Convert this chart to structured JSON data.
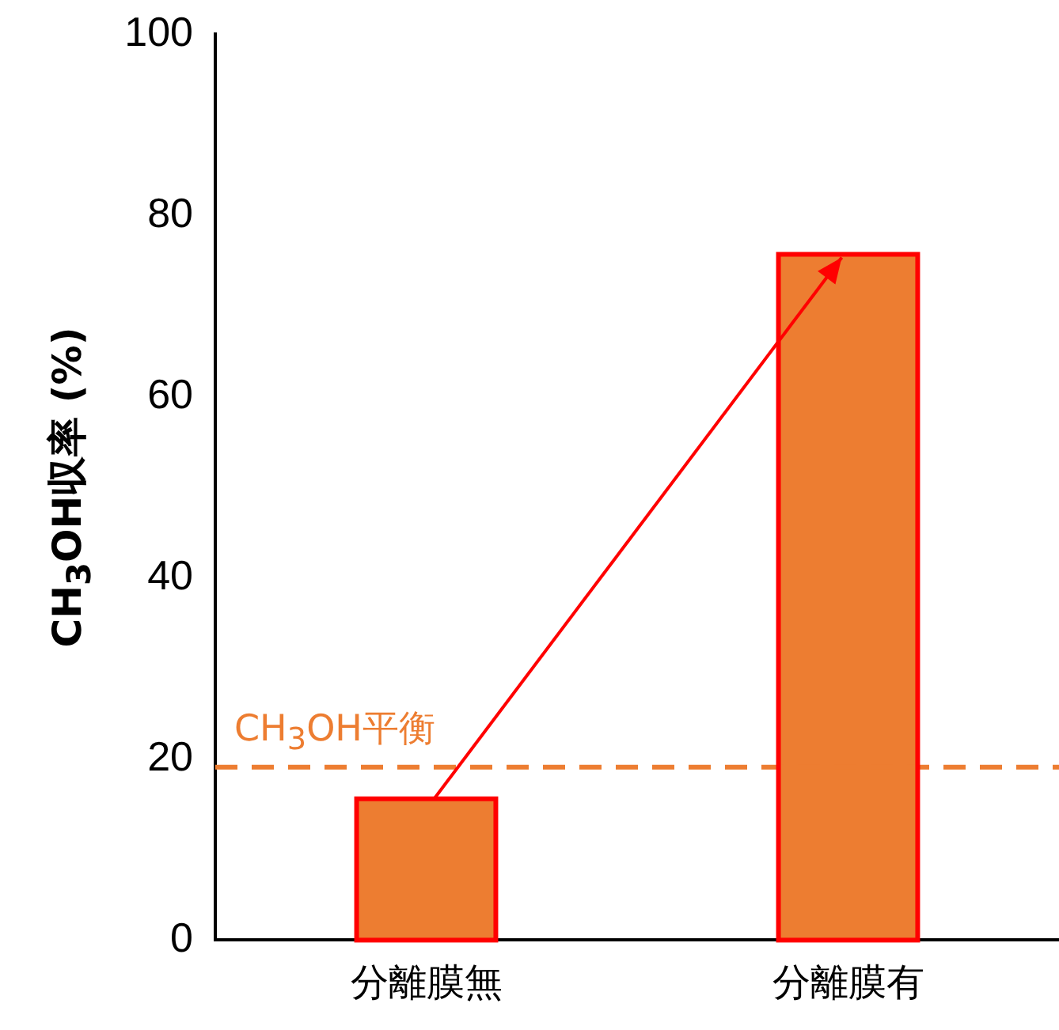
{
  "chart_data": {
    "type": "bar",
    "ylabel": "CH$_{3}$OH収率 (%)",
    "categories": [
      "分離膜無",
      "分離膜有"
    ],
    "values": [
      15.6,
      75.7
    ],
    "color": "#ed7d31",
    "ylim": [
      0,
      100
    ],
    "yticks": [
      0,
      20,
      40,
      60,
      80,
      100
    ],
    "grid": false,
    "legend": false,
    "ref_lines": [
      {
        "axis": "y",
        "value": 19.1,
        "label": "CH$_{3}$OH平衡",
        "color": "#ed7d31",
        "line_style": "dashed"
      }
    ]
  }
}
